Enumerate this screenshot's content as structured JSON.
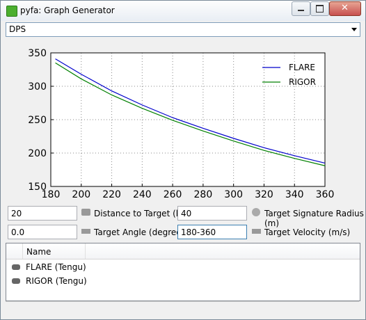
{
  "window": {
    "title": "pyfa: Graph Generator"
  },
  "graph_select": {
    "value": "DPS"
  },
  "chart_data": {
    "type": "line",
    "x": [
      183,
      200,
      220,
      240,
      260,
      280,
      300,
      320,
      340,
      360
    ],
    "series": [
      {
        "name": "FLARE",
        "color": "#0000cc",
        "values": [
          341,
          318,
          293,
          272,
          253,
          237,
          222,
          208,
          196,
          185
        ]
      },
      {
        "name": "RIGOR",
        "color": "#008000",
        "values": [
          335,
          311,
          287,
          267,
          249,
          233,
          218,
          204,
          192,
          181
        ]
      }
    ],
    "xlim": [
      180,
      360
    ],
    "ylim": [
      150,
      350
    ],
    "xticks": [
      180,
      200,
      220,
      240,
      260,
      280,
      300,
      320,
      340,
      360
    ],
    "yticks": [
      150,
      200,
      250,
      300,
      350
    ],
    "grid": true,
    "legend": "upper right"
  },
  "inputs": [
    {
      "value": "20",
      "label": "Distance to Target (km)"
    },
    {
      "value": "40",
      "label": "Target Signature Radius (m)"
    },
    {
      "value": "0.0",
      "label": "Target Angle (degrees)"
    },
    {
      "value": "180-360",
      "label": "Target Velocity (m/s)"
    }
  ],
  "list": {
    "header": "Name",
    "items": [
      "FLARE (Tengu)",
      "RIGOR (Tengu)"
    ]
  }
}
